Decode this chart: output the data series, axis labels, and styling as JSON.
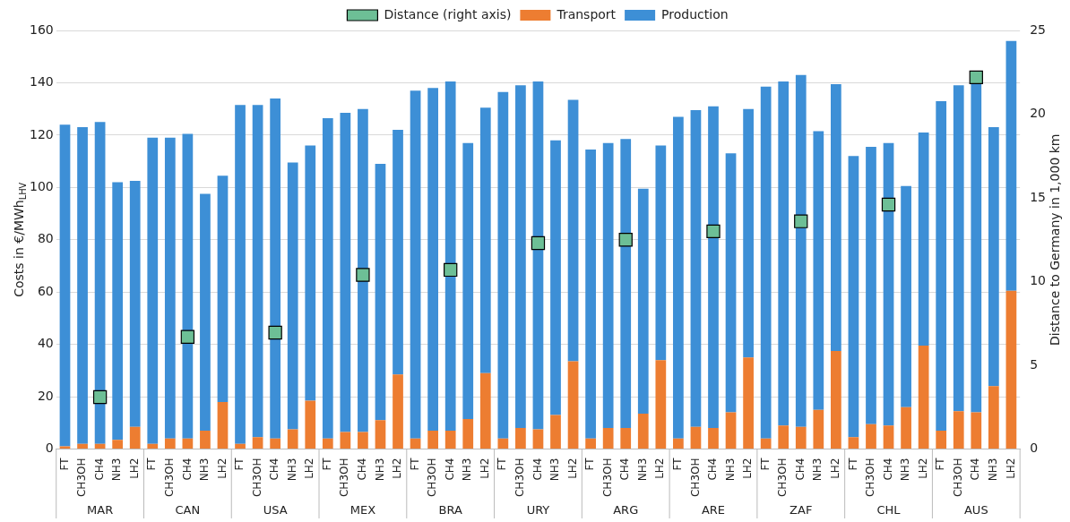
{
  "chart_data": {
    "type": "bar",
    "stacked": true,
    "legend": "top",
    "grid": "y",
    "ylabel": "Costs in €/MWh$_{LHV}$",
    "y2label": "Distance to Germany in 1,000 km",
    "ylim": [
      0,
      160
    ],
    "yticks": [
      0,
      20,
      40,
      60,
      80,
      100,
      120,
      140,
      160
    ],
    "y2lim": [
      0,
      25
    ],
    "y2ticks": [
      0,
      5,
      10,
      15,
      20,
      25
    ],
    "annotations": [
      "MAR",
      "CAN",
      "USA",
      "MEX",
      "BRA",
      "URY",
      "ARG",
      "ARE",
      "ZAF",
      "CHL",
      "AUS"
    ],
    "categories": [
      "FT",
      "CH3OH",
      "CH4",
      "NH3",
      "LH2",
      "FT",
      "CH3OH",
      "CH4",
      "NH3",
      "LH2",
      "FT",
      "CH3OH",
      "CH4",
      "NH3",
      "LH2",
      "FT",
      "CH3OH",
      "CH4",
      "NH3",
      "LH2",
      "FT",
      "CH3OH",
      "CH4",
      "NH3",
      "LH2",
      "FT",
      "CH3OH",
      "CH4",
      "NH3",
      "LH2",
      "FT",
      "CH3OH",
      "CH4",
      "NH3",
      "LH2",
      "FT",
      "CH3OH",
      "CH4",
      "NH3",
      "LH2",
      "FT",
      "CH3OH",
      "CH4",
      "NH3",
      "LH2",
      "FT",
      "CH3OH",
      "CH4",
      "NH3",
      "LH2",
      "FT",
      "CH3OH",
      "CH4",
      "NH3",
      "LH2"
    ],
    "series": [
      {
        "name": "Transport",
        "color": "#ed7d31",
        "values": [
          1,
          2,
          2,
          3.5,
          8.5,
          2,
          4,
          4,
          7,
          18,
          2,
          4.5,
          4,
          7.5,
          18.5,
          4,
          6.5,
          6.5,
          11,
          28.5,
          4,
          7,
          7,
          11.5,
          29,
          4,
          8,
          7.5,
          13,
          33.5,
          4,
          8,
          8,
          13.5,
          34,
          4,
          8.5,
          8,
          14,
          35,
          4,
          9,
          8.5,
          15,
          37.5,
          4.5,
          9.5,
          9,
          16,
          39.5,
          7,
          14.5,
          14,
          24,
          60.5
        ]
      },
      {
        "name": "Production",
        "color": "#3d8fd6",
        "values": [
          123,
          121,
          123,
          98.5,
          94,
          117,
          115,
          116.5,
          90.5,
          86.5,
          129.5,
          127,
          130,
          102,
          97.5,
          122.5,
          122,
          123.5,
          98,
          93.5,
          133,
          131,
          133.5,
          105.5,
          101.5,
          132.5,
          131,
          133,
          105,
          100,
          110.5,
          109,
          110.5,
          86,
          82,
          123,
          121,
          123,
          99,
          95,
          134.5,
          131.5,
          134.5,
          106.5,
          102,
          107.5,
          106,
          108,
          84.5,
          81.5,
          126,
          124.5,
          126,
          99,
          95.5
        ]
      },
      {
        "name": "Distance (right axis)",
        "type": "scatter",
        "axis": "y2",
        "marker": "square",
        "color": "#6dbf96",
        "values": [
          null,
          null,
          3.1,
          null,
          null,
          null,
          null,
          6.7,
          null,
          null,
          null,
          null,
          6.95,
          null,
          null,
          null,
          null,
          10.4,
          null,
          null,
          null,
          null,
          10.7,
          null,
          null,
          null,
          null,
          12.3,
          null,
          null,
          null,
          null,
          12.5,
          null,
          null,
          null,
          null,
          13.0,
          null,
          null,
          null,
          null,
          13.6,
          null,
          null,
          null,
          null,
          14.6,
          null,
          null,
          null,
          null,
          22.2,
          null,
          null
        ]
      }
    ]
  }
}
